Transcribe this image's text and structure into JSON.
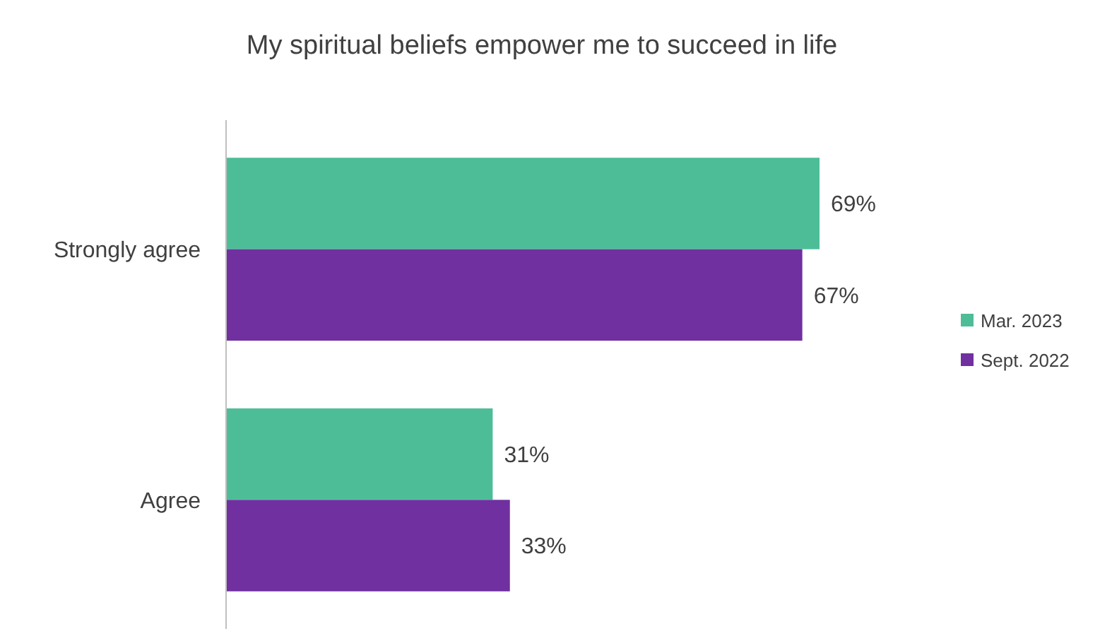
{
  "chart_data": {
    "type": "bar",
    "orientation": "horizontal",
    "title": "My spiritual beliefs empower me to succeed in life",
    "categories": [
      "Strongly agree",
      "Agree"
    ],
    "series": [
      {
        "name": "Mar. 2023",
        "color": "#4dbd98",
        "values": [
          69,
          31
        ],
        "value_labels": [
          "69%",
          "31%"
        ]
      },
      {
        "name": "Sept. 2022",
        "color": "#7030a0",
        "values": [
          67,
          33
        ],
        "value_labels": [
          "67%",
          "33%"
        ]
      }
    ],
    "legend": "right"
  }
}
